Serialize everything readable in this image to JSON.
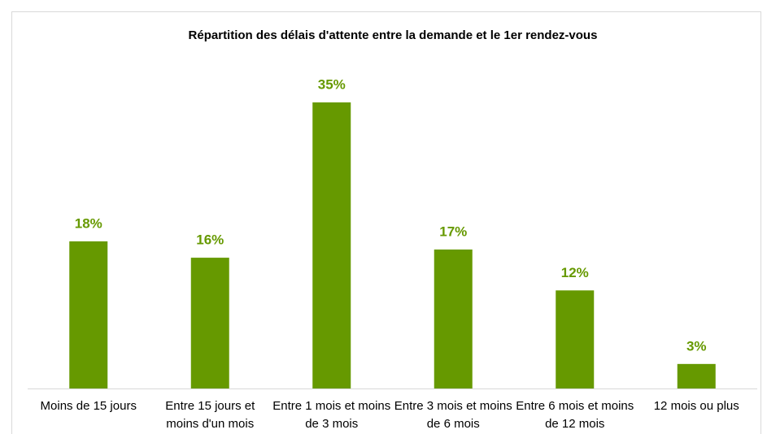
{
  "chart_data": {
    "type": "bar",
    "title": "Répartition des délais d'attente entre la demande et le 1er rendez-vous",
    "categories": [
      "Moins de 15 jours",
      "Entre 15 jours et moins d'un mois",
      "Entre 1 mois et moins de 3 mois",
      "Entre 3 mois et moins de 6 mois",
      "Entre 6 mois et moins de 12 mois",
      "12 mois ou plus"
    ],
    "values": [
      18,
      16,
      35,
      17,
      12,
      3
    ],
    "value_labels": [
      "18%",
      "16%",
      "35%",
      "17%",
      "12%",
      "3%"
    ],
    "color": "#669900"
  }
}
